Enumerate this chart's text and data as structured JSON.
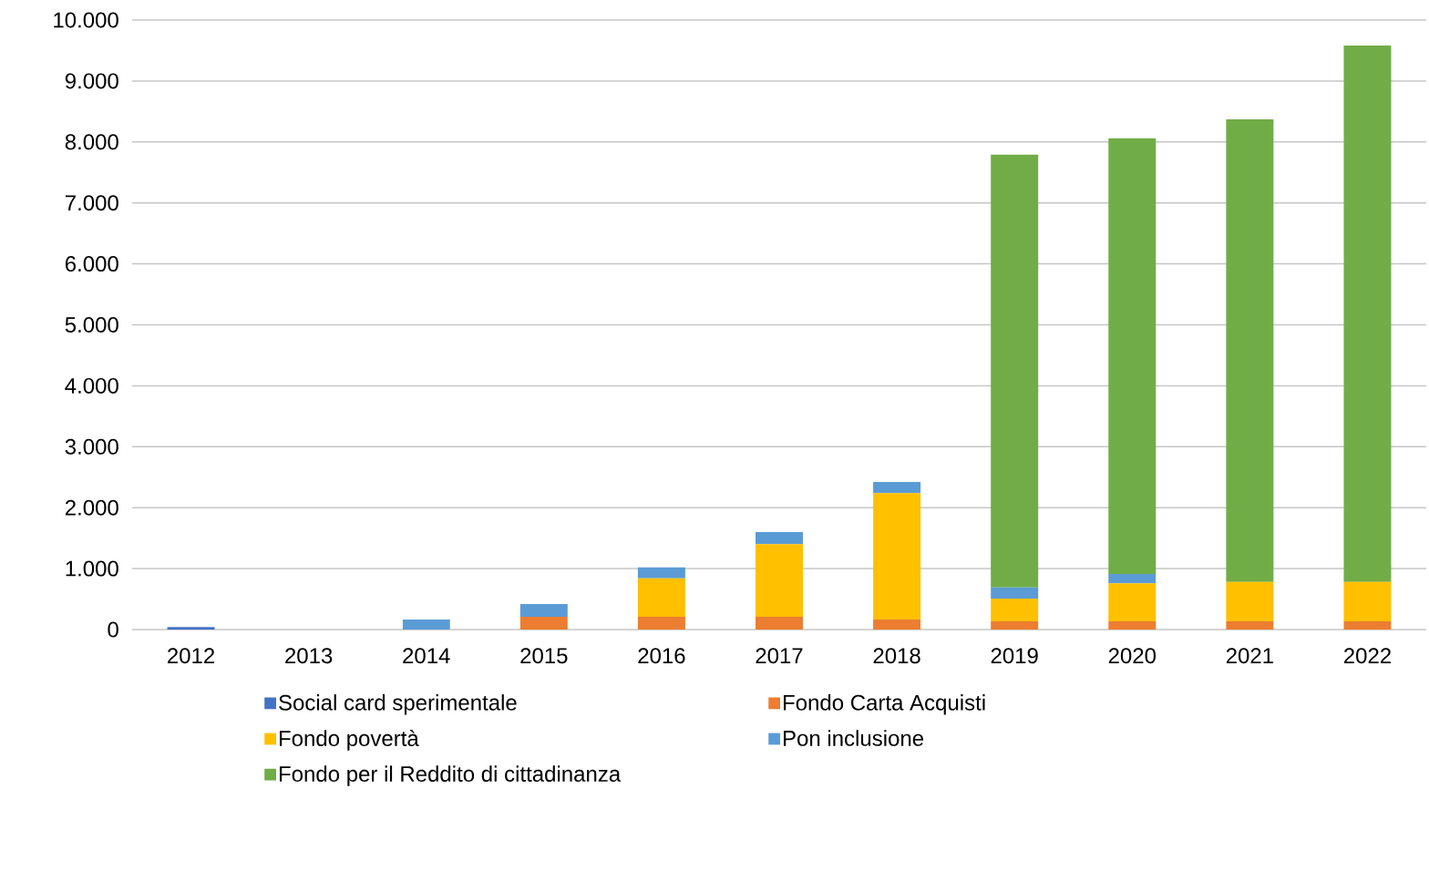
{
  "chart_data": {
    "type": "bar",
    "stacked": true,
    "categories": [
      "2012",
      "2013",
      "2014",
      "2015",
      "2016",
      "2017",
      "2018",
      "2019",
      "2020",
      "2021",
      "2022"
    ],
    "series": [
      {
        "name": "Social card sperimentale",
        "color": "#4472c4",
        "values": [
          40,
          0,
          0,
          0,
          0,
          0,
          0,
          0,
          0,
          0,
          0
        ]
      },
      {
        "name": "Fondo Carta Acquisti",
        "color": "#ed7d31",
        "values": [
          0,
          0,
          0,
          210,
          210,
          210,
          165,
          135,
          135,
          135,
          135
        ]
      },
      {
        "name": "Fondo povertà",
        "color": "#ffc000",
        "values": [
          0,
          0,
          0,
          0,
          630,
          1190,
          2075,
          375,
          625,
          645,
          645
        ]
      },
      {
        "name": "Pon inclusione",
        "color": "#5b9bd5",
        "values": [
          0,
          0,
          165,
          210,
          180,
          200,
          180,
          180,
          150,
          0,
          0
        ]
      },
      {
        "name": "Fondo per il Reddito di cittadinanza",
        "color": "#70ad47",
        "values": [
          0,
          0,
          0,
          0,
          0,
          0,
          0,
          7100,
          7150,
          7590,
          8800
        ]
      }
    ],
    "ylim": [
      0,
      10000
    ],
    "yticks": [
      0,
      {
        "value": 1000,
        "label": "1.000"
      },
      {
        "value": 2000,
        "label": "2.000"
      },
      {
        "value": 3000,
        "label": "3.000"
      },
      {
        "value": 4000,
        "label": "4.000"
      },
      {
        "value": 5000,
        "label": "5.000"
      },
      {
        "value": 6000,
        "label": "6.000"
      },
      {
        "value": 7000,
        "label": "7.000"
      },
      {
        "value": 8000,
        "label": "8.000"
      },
      {
        "value": 9000,
        "label": "9.000"
      },
      {
        "value": 10000,
        "label": "10.000"
      }
    ],
    "grid": "y",
    "legend": "bottom"
  }
}
